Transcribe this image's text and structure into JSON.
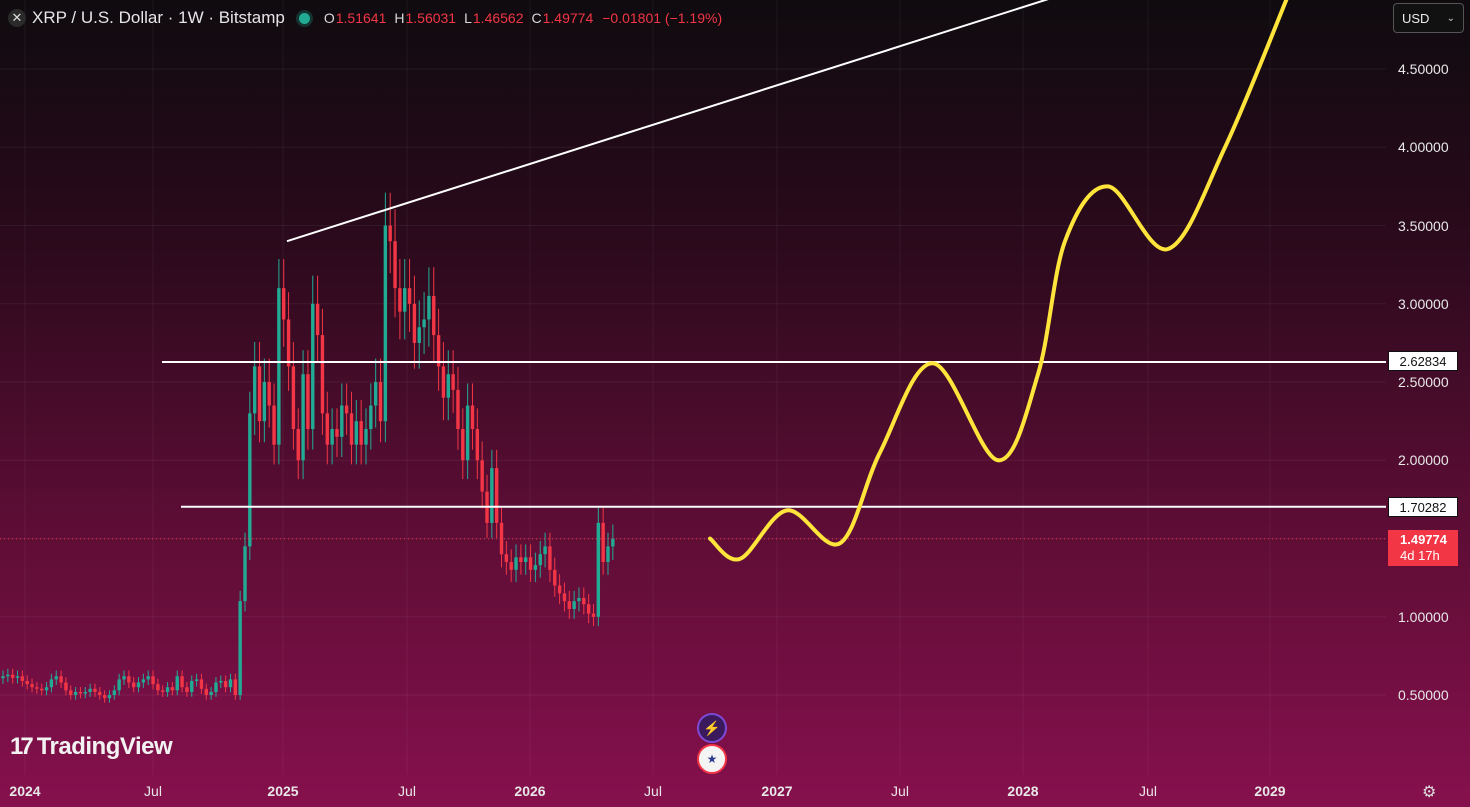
{
  "header": {
    "symbol_title": "XRP / U.S. Dollar · 1W · Bitstamp",
    "ohlc": [
      {
        "k": "O",
        "v": "1.51641"
      },
      {
        "k": "H",
        "v": "1.56031"
      },
      {
        "k": "L",
        "v": "1.46562"
      },
      {
        "k": "C",
        "v": "1.49774"
      }
    ],
    "change": "−0.01801 (−1.19%)"
  },
  "currency_selector": {
    "value": "USD"
  },
  "price_axis_labels": [
    "4.50000",
    "4.00000",
    "3.50000",
    "3.00000",
    "2.50000",
    "2.00000",
    "1.00000",
    "0.50000"
  ],
  "level_tags": {
    "upper": "2.62834",
    "lower": "1.70282"
  },
  "last_price": {
    "price": "1.49774",
    "countdown": "4d 17h"
  },
  "time_axis_labels": [
    {
      "text": "2024",
      "bold": true
    },
    {
      "text": "Jul",
      "bold": false
    },
    {
      "text": "2025",
      "bold": true
    },
    {
      "text": "Jul",
      "bold": false
    },
    {
      "text": "2026",
      "bold": true
    },
    {
      "text": "Jul",
      "bold": false
    },
    {
      "text": "2027",
      "bold": true
    },
    {
      "text": "Jul",
      "bold": false
    },
    {
      "text": "2028",
      "bold": true
    },
    {
      "text": "Jul",
      "bold": false
    },
    {
      "text": "2029",
      "bold": true
    }
  ],
  "branding": {
    "logo_text": "TradingView",
    "logo_mark": "17"
  },
  "colors": {
    "up": "#22ab94",
    "down": "#f23645",
    "forecast": "#ffe53b",
    "lines": "#ffffff"
  },
  "chart_data": {
    "type": "candlestick",
    "interval": "1W",
    "y_scale": "linear",
    "ylim": [
      0.0,
      5.0
    ],
    "grid": true,
    "horizontal_levels": [
      2.62834,
      1.70282
    ],
    "trendline": {
      "from": {
        "date": "2025-01-06",
        "price": 3.4
      },
      "to": {
        "date": "2025-07-14",
        "price": 3.65
      },
      "extended": true
    },
    "forecast_path_price": [
      1.5,
      1.37,
      1.68,
      1.47,
      2.05,
      2.62,
      2.0,
      2.55,
      3.4,
      3.75,
      3.35,
      4.0,
      5.0
    ],
    "candle_closes": [
      0.62,
      0.63,
      0.61,
      0.62,
      0.59,
      0.57,
      0.55,
      0.54,
      0.53,
      0.55,
      0.6,
      0.62,
      0.58,
      0.53,
      0.5,
      0.52,
      0.51,
      0.52,
      0.54,
      0.52,
      0.5,
      0.48,
      0.5,
      0.53,
      0.6,
      0.62,
      0.58,
      0.55,
      0.58,
      0.6,
      0.62,
      0.57,
      0.53,
      0.52,
      0.55,
      0.53,
      0.62,
      0.55,
      0.52,
      0.59,
      0.6,
      0.54,
      0.5,
      0.52,
      0.58,
      0.59,
      0.55,
      0.6,
      0.5,
      1.1,
      1.45,
      2.3,
      2.6,
      2.25,
      2.5,
      2.35,
      2.1,
      3.1,
      2.9,
      2.6,
      2.2,
      2.0,
      2.55,
      2.2,
      3.0,
      2.8,
      2.3,
      2.1,
      2.2,
      2.15,
      2.35,
      2.3,
      2.1,
      2.25,
      2.1,
      2.2,
      2.35,
      2.5,
      2.25,
      3.5,
      3.4,
      3.1,
      2.95,
      3.1,
      3.0,
      2.75,
      2.85,
      2.9,
      3.05,
      2.8,
      2.6,
      2.4,
      2.55,
      2.45,
      2.2,
      2.0,
      2.35,
      2.2,
      2.0,
      1.8,
      1.6,
      1.95,
      1.6,
      1.4,
      1.35,
      1.3,
      1.38,
      1.35,
      1.38,
      1.3,
      1.33,
      1.4,
      1.45,
      1.3,
      1.2,
      1.15,
      1.1,
      1.05,
      1.1,
      1.12,
      1.08,
      1.02,
      1.0,
      1.6,
      1.35,
      1.45,
      1.5
    ]
  }
}
